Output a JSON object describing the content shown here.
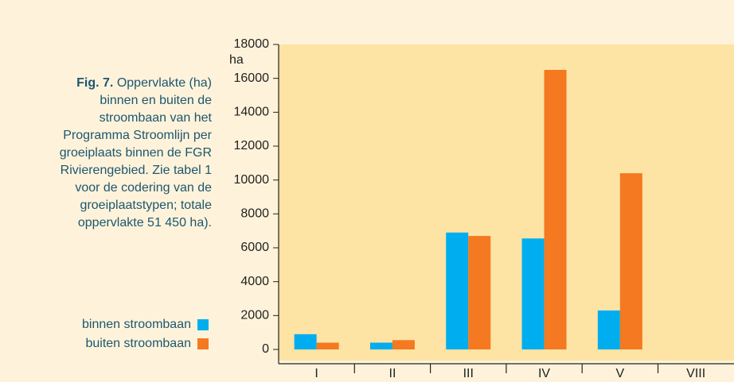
{
  "chart_data": {
    "type": "bar",
    "y_label": "ha",
    "caption": {
      "label": "Fig. 7.",
      "lines": [
        "Oppervlakte (ha)",
        "binnen en buiten de",
        "stroombaan van het",
        "Programma Stroomlijn per",
        "groeiplaats binnen de FGR",
        "Rivierengebied. Zie tabel 1",
        "voor de codering van de",
        "groeiplaatstypen; totale",
        "oppervlakte 51 450 ha)."
      ]
    },
    "categories": [
      "I",
      "II",
      "III",
      "IV",
      "V",
      "VIII"
    ],
    "series": [
      {
        "name": "binnen stroombaan",
        "color": "#00aeef",
        "values": [
          900,
          400,
          6900,
          6550,
          2300,
          null
        ]
      },
      {
        "name": "buiten stroombaan",
        "color": "#f47920",
        "values": [
          400,
          550,
          6700,
          16500,
          10400,
          null
        ]
      }
    ],
    "ylim": [
      0,
      18000
    ],
    "yticks": [
      0,
      2000,
      4000,
      6000,
      8000,
      10000,
      12000,
      14000,
      16000,
      18000
    ]
  }
}
